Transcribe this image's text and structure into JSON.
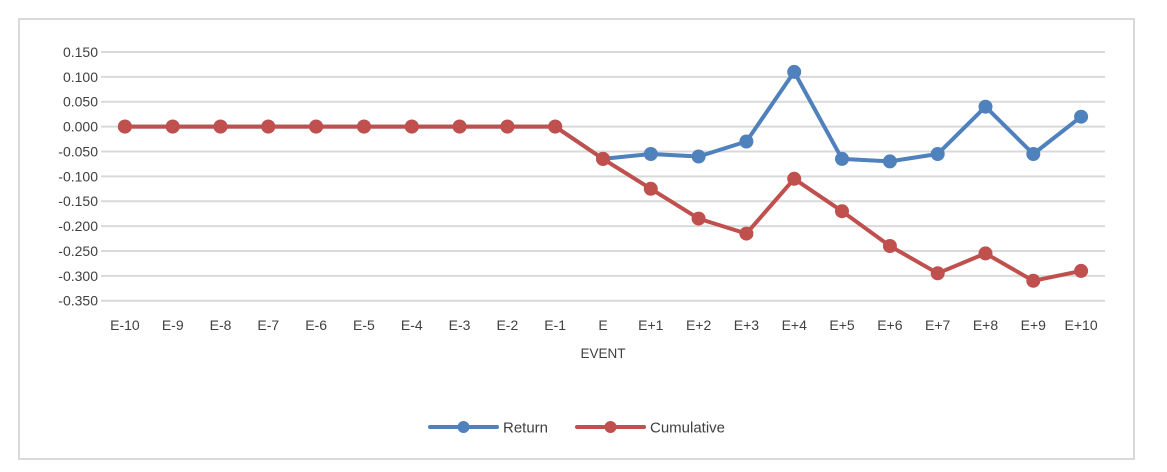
{
  "chart_data": {
    "type": "line",
    "title": "",
    "xlabel": "EVENT",
    "ylabel": "",
    "categories": [
      "E-10",
      "E-9",
      "E-8",
      "E-7",
      "E-6",
      "E-5",
      "E-4",
      "E-3",
      "E-2",
      "E-1",
      "E",
      "E+1",
      "E+2",
      "E+3",
      "E+4",
      "E+5",
      "E+6",
      "E+7",
      "E+8",
      "E+9",
      "E+10"
    ],
    "series": [
      {
        "name": "Return",
        "color": "#4F81BD",
        "values": [
          0.0,
          0.0,
          0.0,
          0.0,
          0.0,
          0.0,
          0.0,
          0.0,
          0.0,
          0.0,
          -0.065,
          -0.055,
          -0.06,
          -0.03,
          0.11,
          -0.065,
          -0.07,
          -0.055,
          0.04,
          -0.055,
          0.02
        ]
      },
      {
        "name": "Cumulative",
        "color": "#C0504D",
        "values": [
          0.0,
          0.0,
          0.0,
          0.0,
          0.0,
          0.0,
          0.0,
          0.0,
          0.0,
          0.0,
          -0.065,
          -0.125,
          -0.185,
          -0.215,
          -0.105,
          -0.17,
          -0.24,
          -0.295,
          -0.255,
          -0.31,
          -0.29
        ]
      }
    ],
    "ylim": [
      -0.35,
      0.15
    ],
    "ytick_step": 0.05,
    "ytick_labels": [
      "0.150",
      "0.100",
      "0.050",
      "0.000",
      "-0.050",
      "-0.100",
      "-0.150",
      "-0.200",
      "-0.250",
      "-0.300",
      "-0.350"
    ],
    "grid": true,
    "legend_position": "bottom",
    "legend_entries": [
      "Return",
      "Cumulative"
    ]
  },
  "style": {
    "background": "#FFFFFF",
    "frame_border_color": "#D9D9D9",
    "grid_color": "#D9D9D9",
    "axis_line_color": "#D9D9D9",
    "axis_text_color": "#404040",
    "legend_text_color": "#404040",
    "series_blue": "#4F81BD",
    "series_red": "#C0504D"
  }
}
